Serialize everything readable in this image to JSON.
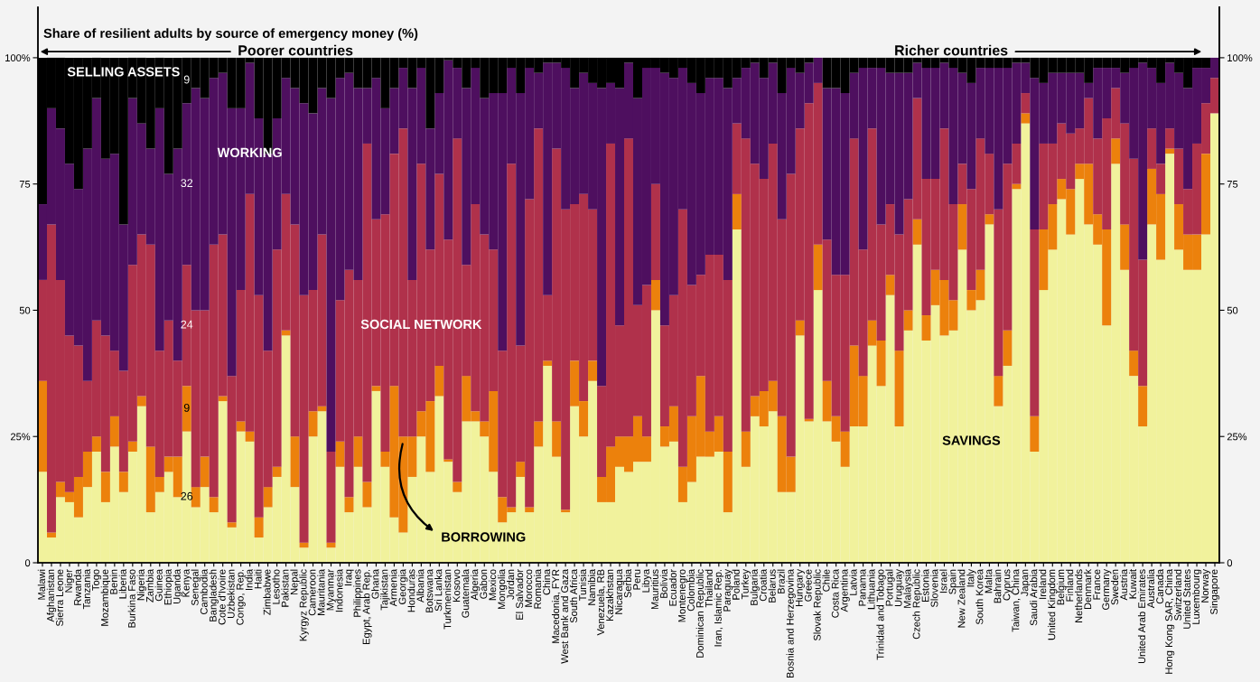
{
  "chart_data": {
    "type": "bar",
    "stacked": true,
    "title": "Share of resilient adults by source of emergency money (%)",
    "categories": [
      "Malawi",
      "Afghanistan",
      "Sierra Leone",
      "Niger",
      "Rwanda",
      "Tanzania",
      "Togo",
      "Mozambique",
      "Benin",
      "Liberia",
      "Burkina Faso",
      "Nigeria",
      "Zambia",
      "Guinea",
      "Ethiopia",
      "Uganda",
      "Kenya",
      "Senegal",
      "Cambodia",
      "Bangladesh",
      "Cote d'Ivoire",
      "Uzbekistan",
      "Congo, Rep.",
      "India",
      "Haiti",
      "Zimbabwe",
      "Lesotho",
      "Pakistan",
      "Nepal",
      "Kyrgyz Republic",
      "Cameroon",
      "Mauritania",
      "Myanmar",
      "Indonesia",
      "Iraq",
      "Philippines",
      "Egypt, Arab Rep.",
      "Ghana",
      "Tajikistan",
      "Armenia",
      "Georgia",
      "Honduras",
      "Albania",
      "Botswana",
      "Sri Lanka",
      "Turkmenistan",
      "Kosovo",
      "Guatemala",
      "Algeria",
      "Gabon",
      "Mexico",
      "Mongolia",
      "Jordan",
      "El Salvador",
      "Morocco",
      "Romania",
      "China",
      "Macedonia, FYR",
      "West Bank and Gaza",
      "South Africa",
      "Tunisia",
      "Namibia",
      "Venezuela, RB",
      "Kazakhstan",
      "Nicaragua",
      "Serbia",
      "Peru",
      "Libya",
      "Mauritius",
      "Bolivia",
      "Ecuador",
      "Montenegro",
      "Colombia",
      "Dominican Republic",
      "Thailand",
      "Iran, Islamic Rep.",
      "Paraguay",
      "Poland",
      "Turkey",
      "Bulgaria",
      "Croatia",
      "Belarus",
      "Brazil",
      "Bosnia and Herzegovina",
      "Hungary",
      "Greece",
      "Slovak Republic",
      "Chile",
      "Costa Rica",
      "Argentina",
      "Latvia",
      "Panama",
      "Lithuania",
      "Trinidad and Tobago",
      "Portugal",
      "Uruguay",
      "Malaysia",
      "Czech Republic",
      "Estonia",
      "Slovenia",
      "Israel",
      "Spain",
      "New Zealand",
      "Italy",
      "South Korea",
      "Malta",
      "Bahrain",
      "Cyprus",
      "Taiwan, China",
      "Japan",
      "Saudi Arabia",
      "Ireland",
      "United Kingdom",
      "Belgium",
      "Finland",
      "Netherlands",
      "Denmark",
      "France",
      "Germany",
      "Sweden",
      "Austria",
      "Kuwait",
      "United Arab Emirates",
      "Australia",
      "Canada",
      "Hong Kong SAR, China",
      "Switzerland",
      "United States",
      "Luxembourg",
      "Norway",
      "Singapore"
    ],
    "series": [
      {
        "color": "#f1f29c",
        "values": [
          18,
          5,
          13,
          12,
          9,
          15,
          22,
          12,
          23,
          14,
          22,
          31,
          10,
          14,
          18,
          13,
          26,
          11,
          15,
          10,
          32,
          7,
          26,
          24,
          5,
          11,
          17,
          45,
          15,
          3,
          25,
          30,
          3,
          19,
          10,
          19,
          11,
          34,
          19,
          9,
          6,
          17,
          25,
          18,
          33,
          20,
          14,
          28,
          28,
          25,
          18,
          8,
          10,
          17,
          10,
          23,
          39,
          21,
          10,
          31,
          25,
          36,
          12,
          12,
          19,
          18,
          20,
          20,
          50,
          23,
          24,
          12,
          16,
          21,
          21,
          22,
          10,
          66,
          19,
          29,
          27,
          30,
          14,
          14,
          45,
          28,
          54,
          28,
          24,
          19,
          27,
          27,
          43,
          35,
          53,
          27,
          46,
          63,
          44,
          51,
          45,
          46,
          62,
          50,
          52,
          67,
          31,
          39,
          74,
          87,
          22,
          54,
          62,
          72,
          65,
          76,
          67,
          63,
          47,
          79,
          58,
          37,
          27,
          67,
          60,
          81,
          62,
          58,
          58,
          65,
          89
        ],
        "value_labels": [
          null,
          null,
          null,
          null,
          null,
          null,
          null,
          null,
          null,
          null,
          null,
          null,
          null,
          null,
          null,
          null,
          "26",
          null,
          null,
          null,
          null,
          null,
          null,
          null,
          null,
          null,
          null,
          null,
          null,
          null,
          null,
          null,
          null,
          null,
          null,
          null,
          null,
          null,
          null,
          null,
          null,
          null,
          null,
          null,
          null,
          null,
          null,
          null,
          null,
          null,
          null,
          null,
          null,
          null,
          null,
          null,
          null,
          null,
          null,
          null,
          null,
          null,
          null,
          null,
          null,
          null,
          null,
          null,
          null,
          null,
          null,
          null,
          null,
          null,
          null,
          null,
          null,
          null,
          null,
          null,
          null,
          null,
          null,
          null,
          null,
          null,
          null,
          null,
          null,
          null,
          null,
          null,
          null,
          null,
          null,
          null,
          null,
          null,
          null,
          null,
          null,
          null,
          null,
          null,
          null,
          null,
          null,
          null,
          null,
          null,
          null,
          null,
          null,
          null,
          null,
          null,
          null,
          null,
          null,
          null,
          null,
          null,
          null,
          null,
          null,
          null,
          null,
          null,
          null,
          null,
          null
        ]
      },
      {
        "color": "#ec810c",
        "values": [
          18,
          1,
          3,
          2,
          8,
          7,
          3,
          6,
          6,
          4,
          2,
          2,
          13,
          3,
          3,
          8,
          9,
          4,
          6,
          3,
          1,
          1,
          2,
          2,
          4,
          4,
          2,
          1,
          10,
          1,
          5,
          1,
          1,
          5,
          3,
          6,
          5,
          1,
          3,
          26,
          19,
          8,
          5,
          14,
          6,
          0.5,
          2,
          9,
          2,
          3,
          16,
          5,
          1,
          3,
          1,
          5,
          1,
          7,
          0.5,
          9,
          7,
          4,
          5,
          11,
          6,
          7,
          9,
          5,
          6,
          4,
          7,
          7,
          13,
          16,
          5,
          7,
          12,
          7,
          7,
          4,
          7,
          6,
          15,
          7,
          3,
          0.5,
          9,
          8,
          5,
          7,
          16,
          10,
          5,
          9,
          4,
          15,
          4,
          5,
          5,
          7,
          11,
          6,
          9,
          4,
          6,
          2,
          6,
          7,
          1,
          2,
          7,
          12,
          9,
          4,
          9,
          3,
          12,
          6,
          19,
          5,
          9,
          5,
          8,
          11,
          13,
          1,
          9,
          7,
          7,
          16,
          0
        ],
        "value_labels": [
          null,
          null,
          null,
          null,
          null,
          null,
          null,
          null,
          null,
          null,
          null,
          null,
          null,
          null,
          null,
          null,
          "9",
          null,
          null,
          null,
          null,
          null,
          null,
          null,
          null,
          null,
          null,
          null,
          null,
          null,
          null,
          null,
          null,
          null,
          null,
          null,
          null,
          null,
          null,
          null,
          null,
          null,
          null,
          null,
          null,
          null,
          null,
          null,
          null,
          null,
          null,
          null,
          null,
          null,
          null,
          null,
          null,
          null,
          null,
          null,
          null,
          null,
          null,
          null,
          null,
          null,
          null,
          null,
          null,
          null,
          null,
          null,
          null,
          null,
          null,
          null,
          null,
          null,
          null,
          null,
          null,
          null,
          null,
          null,
          null,
          null,
          null,
          null,
          null,
          null,
          null,
          null,
          null,
          null,
          null,
          null,
          null,
          null,
          null,
          null,
          null,
          null,
          null,
          null,
          null,
          null,
          null,
          null,
          null,
          null,
          null,
          null,
          null,
          null,
          null,
          null,
          null,
          null,
          null,
          null,
          null,
          null,
          null,
          null,
          null,
          null,
          null,
          null,
          null,
          null,
          null
        ]
      },
      {
        "color": "#b0314b",
        "values": [
          20,
          61,
          40,
          31,
          26,
          14,
          23,
          27,
          13,
          20,
          35,
          32,
          40,
          25,
          27,
          19,
          24,
          35,
          29,
          50,
          32,
          29,
          26,
          47,
          44,
          27,
          43,
          27,
          42,
          49,
          24,
          34,
          18,
          28,
          45,
          31,
          67,
          33,
          47,
          46,
          61,
          31,
          49,
          30,
          38,
          43.5,
          68,
          22,
          41,
          37,
          28,
          29,
          68,
          23,
          61,
          58,
          13,
          54,
          59.5,
          31,
          41,
          30,
          18,
          60,
          22,
          59,
          22,
          30,
          19,
          20,
          22,
          51,
          26,
          20,
          35,
          32,
          34,
          14,
          58,
          46,
          42,
          47,
          39,
          56,
          38,
          62.5,
          32,
          28,
          28,
          31,
          41,
          25,
          38,
          23,
          14,
          23,
          22,
          24,
          27,
          18,
          30,
          19,
          8,
          20,
          26,
          12,
          33,
          33,
          8,
          4,
          37,
          17,
          12,
          11,
          11,
          7,
          13,
          15,
          22,
          10,
          20,
          38,
          25,
          8,
          6,
          4,
          11,
          9,
          18,
          10,
          7
        ],
        "value_labels": [
          null,
          null,
          null,
          null,
          null,
          null,
          null,
          null,
          null,
          null,
          null,
          null,
          null,
          null,
          null,
          null,
          "24",
          null,
          null,
          null,
          null,
          null,
          null,
          null,
          null,
          null,
          null,
          null,
          null,
          null,
          null,
          null,
          null,
          null,
          null,
          null,
          null,
          null,
          null,
          null,
          null,
          null,
          null,
          null,
          null,
          null,
          null,
          null,
          null,
          null,
          null,
          null,
          null,
          null,
          null,
          null,
          null,
          null,
          null,
          null,
          null,
          null,
          null,
          null,
          null,
          null,
          null,
          null,
          null,
          null,
          null,
          null,
          null,
          null,
          null,
          null,
          null,
          null,
          null,
          null,
          null,
          null,
          null,
          null,
          null,
          null,
          null,
          null,
          null,
          null,
          null,
          null,
          null,
          null,
          null,
          null,
          null,
          null,
          null,
          null,
          null,
          null,
          null,
          null,
          null,
          null,
          null,
          null,
          null,
          null,
          null,
          null,
          null,
          null,
          null,
          null,
          null,
          null,
          null,
          null,
          null,
          null,
          null,
          null,
          null,
          null,
          null,
          null,
          null,
          null,
          null
        ]
      },
      {
        "color": "#4e0f5f",
        "values": [
          15,
          23,
          30,
          34,
          31,
          46,
          44,
          35,
          39,
          29,
          33,
          22,
          19,
          48,
          29,
          42,
          32,
          44,
          42,
          33,
          32,
          53,
          36,
          26,
          35,
          39,
          26,
          23,
          27,
          38,
          35,
          29,
          70,
          44,
          39,
          38,
          11,
          28,
          21,
          13,
          12,
          38,
          19,
          24,
          16,
          35.5,
          14,
          35,
          27,
          27,
          31,
          51,
          19,
          50,
          26,
          11,
          46,
          17,
          28,
          23,
          24,
          25,
          59,
          12,
          47,
          15,
          41,
          43,
          23,
          50,
          43,
          28,
          40,
          36,
          35,
          35,
          38,
          9,
          14,
          20,
          20,
          16,
          25,
          21,
          11,
          8,
          5,
          30,
          37,
          36,
          13,
          36,
          12,
          31,
          26,
          32,
          25,
          7,
          22,
          22,
          13,
          27,
          18,
          21,
          14,
          17,
          28,
          19,
          16,
          6,
          30,
          12,
          14,
          10,
          12,
          11,
          3,
          14,
          10,
          4,
          10,
          18,
          39,
          12,
          16,
          13,
          15,
          20,
          15,
          7,
          4
        ],
        "value_labels": [
          null,
          null,
          null,
          null,
          null,
          null,
          null,
          null,
          null,
          null,
          null,
          null,
          null,
          null,
          null,
          null,
          "32",
          null,
          null,
          null,
          null,
          null,
          null,
          null,
          null,
          null,
          null,
          null,
          null,
          null,
          null,
          null,
          null,
          null,
          null,
          null,
          null,
          null,
          null,
          null,
          null,
          null,
          null,
          null,
          null,
          null,
          null,
          null,
          null,
          null,
          null,
          null,
          null,
          null,
          null,
          null,
          null,
          null,
          null,
          null,
          null,
          null,
          null,
          null,
          null,
          null,
          null,
          null,
          null,
          null,
          null,
          null,
          null,
          null,
          null,
          null,
          null,
          null,
          null,
          null,
          null,
          null,
          null,
          null,
          null,
          null,
          null,
          null,
          null,
          null,
          null,
          null,
          null,
          null,
          null,
          null,
          null,
          null,
          null,
          null,
          null,
          null,
          null,
          null,
          null,
          null,
          null,
          null,
          null,
          null,
          null,
          null,
          null,
          null,
          null,
          null,
          null,
          null,
          null,
          null,
          null,
          null,
          null,
          null,
          null,
          null,
          null,
          null,
          null,
          null,
          null
        ]
      },
      {
        "color": "#000000",
        "values": [
          29,
          10,
          14,
          21,
          26,
          18,
          8,
          20,
          19,
          33,
          8,
          13,
          18,
          10,
          23,
          18,
          9,
          6,
          8,
          4,
          3,
          10,
          10,
          1,
          12,
          19,
          12,
          4,
          6,
          9,
          11,
          6,
          8,
          4,
          3,
          6,
          6,
          4,
          10,
          6,
          2,
          6,
          2,
          14,
          7,
          0.5,
          2,
          6,
          2,
          8,
          7,
          7,
          2,
          7,
          2,
          3,
          1,
          1,
          2,
          6,
          3,
          5,
          6,
          5,
          6,
          1,
          8,
          2,
          2,
          3,
          4,
          2,
          5,
          7,
          4,
          4,
          6,
          4,
          2,
          1,
          4,
          1,
          7,
          2,
          3,
          1,
          0,
          6,
          6,
          7,
          3,
          2,
          2,
          2,
          3,
          3,
          3,
          1,
          2,
          2,
          1,
          2,
          3,
          5,
          2,
          2,
          2,
          2,
          1,
          1,
          4,
          5,
          3,
          3,
          3,
          3,
          5,
          2,
          2,
          2,
          3,
          2,
          1,
          2,
          5,
          1,
          3,
          6,
          2,
          2,
          0
        ],
        "value_labels": [
          null,
          null,
          null,
          null,
          null,
          null,
          null,
          null,
          null,
          null,
          null,
          null,
          null,
          null,
          null,
          null,
          "9",
          null,
          null,
          null,
          null,
          null,
          null,
          null,
          null,
          null,
          null,
          null,
          null,
          null,
          null,
          null,
          null,
          null,
          null,
          null,
          null,
          null,
          null,
          null,
          null,
          null,
          null,
          null,
          null,
          null,
          null,
          null,
          null,
          null,
          null,
          null,
          null,
          null,
          null,
          null,
          null,
          null,
          null,
          null,
          null,
          null,
          null,
          null,
          null,
          null,
          null,
          null,
          null,
          null,
          null,
          null,
          null,
          null,
          null,
          null,
          null,
          null,
          null,
          null,
          null,
          null,
          null,
          null,
          null,
          null,
          null,
          null,
          null,
          null,
          null,
          null,
          null,
          null,
          null,
          null,
          null,
          null,
          null,
          null,
          null,
          null,
          null,
          null,
          null,
          null,
          null,
          null,
          null,
          null,
          null,
          null,
          null,
          null,
          null,
          null,
          null,
          null,
          null,
          null,
          null,
          null,
          null,
          null,
          null,
          null,
          null,
          null,
          null,
          null,
          null
        ]
      }
    ],
    "ylim": [
      0,
      110
    ],
    "yticks": [
      0,
      {
        "value": 25,
        "label": "25%"
      },
      50,
      75,
      {
        "value": 100,
        "label": "100%"
      }
    ],
    "y2lim": [
      0,
      110
    ],
    "y2ticks": [
      0,
      {
        "value": 25,
        "label": "25%"
      },
      50,
      75,
      {
        "value": 100,
        "label": "100%"
      }
    ],
    "annotations": [
      "Poorer countries",
      "Richer countries",
      {
        "text": "SELLING ASSETS",
        "x": "Liberia",
        "y": 97
      },
      {
        "text": "WORKING",
        "x": "India",
        "y": 81
      },
      {
        "text": "SOCIAL NETWORK",
        "x": "Albania",
        "y": 47
      },
      {
        "text": "BORROWING",
        "x": "Georgia",
        "y": 24
      },
      {
        "text": "SAVINGS",
        "x": "Italy",
        "y": 24
      }
    ]
  }
}
